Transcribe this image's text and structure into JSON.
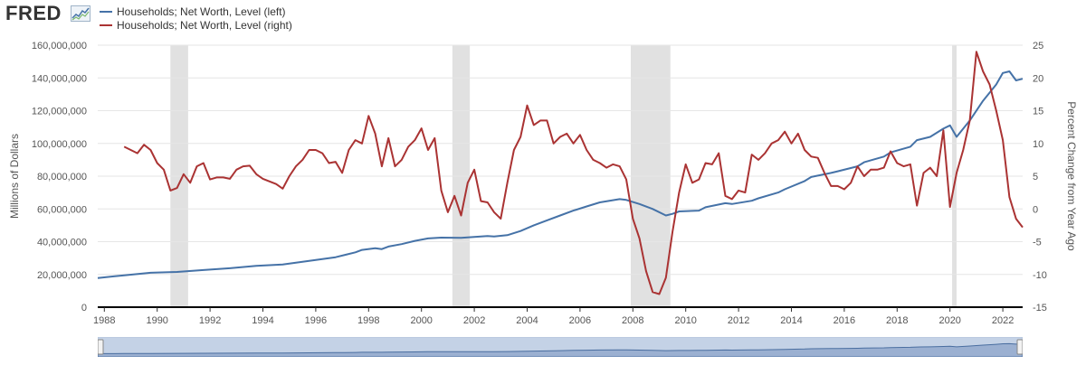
{
  "header": {
    "logo_text": "FRED",
    "legend": [
      {
        "label": "Households; Net Worth, Level (left)",
        "color": "#4572a7"
      },
      {
        "label": "Households; Net Worth, Level (right)",
        "color": "#aa3333"
      }
    ]
  },
  "chart_data": {
    "type": "line",
    "title": "",
    "xlabel": "",
    "ylabel_left": "Millions of Dollars",
    "ylabel_right": "Percent Change from Year Ago",
    "xlim": [
      1987.75,
      2022.75
    ],
    "ylim_left": [
      0,
      160000000
    ],
    "ylim_right": [
      -15,
      25
    ],
    "x_ticks": [
      "1988",
      "1990",
      "1992",
      "1994",
      "1996",
      "1998",
      "2000",
      "2002",
      "2004",
      "2006",
      "2008",
      "2010",
      "2012",
      "2014",
      "2016",
      "2018",
      "2020",
      "2022"
    ],
    "y_ticks_left": [
      "0",
      "20,000,000",
      "40,000,000",
      "60,000,000",
      "80,000,000",
      "100,000,000",
      "120,000,000",
      "140,000,000",
      "160,000,000"
    ],
    "y_ticks_right": [
      "-15",
      "-10",
      "-5",
      "0",
      "5",
      "10",
      "15",
      "20",
      "25"
    ],
    "recessions": [
      [
        1990.5,
        1991.17
      ],
      [
        2001.17,
        2001.83
      ],
      [
        2007.92,
        2009.42
      ],
      [
        2020.08,
        2020.25
      ]
    ],
    "series": [
      {
        "name": "Households; Net Worth, Level (left)",
        "axis": "left",
        "color": "#4572a7",
        "x": [
          1987.75,
          1988.75,
          1989.75,
          1990.75,
          1991.75,
          1992.75,
          1993.75,
          1994.75,
          1995.75,
          1996.75,
          1997.5,
          1997.75,
          1998.25,
          1998.5,
          1998.75,
          1999.25,
          1999.75,
          2000.25,
          2000.75,
          2001.5,
          2001.75,
          2002.5,
          2002.75,
          2003.25,
          2003.75,
          2004.25,
          2004.75,
          2005.25,
          2005.75,
          2006.25,
          2006.75,
          2007.5,
          2007.75,
          2008.25,
          2008.75,
          2009.25,
          2009.5,
          2009.75,
          2010.5,
          2010.75,
          2011.5,
          2011.75,
          2012.5,
          2012.75,
          2013.5,
          2013.75,
          2014.5,
          2014.75,
          2015.5,
          2015.75,
          2016.5,
          2016.75,
          2017.5,
          2017.75,
          2018.5,
          2018.75,
          2019.25,
          2019.75,
          2020.0,
          2020.25,
          2020.75,
          2021.25,
          2021.75,
          2022.0,
          2022.25,
          2022.5,
          2022.75
        ],
        "values": [
          17800000,
          19500000,
          21000000,
          21500000,
          22700000,
          23800000,
          25200000,
          26100000,
          28300000,
          30500000,
          33500000,
          35000000,
          36000000,
          35500000,
          37000000,
          38500000,
          40500000,
          42000000,
          42500000,
          42300000,
          42600000,
          43500000,
          43200000,
          44000000,
          46500000,
          50000000,
          53000000,
          56000000,
          59000000,
          61500000,
          64000000,
          66000000,
          65500000,
          63000000,
          60000000,
          56000000,
          57000000,
          58500000,
          59000000,
          61000000,
          63500000,
          63000000,
          65000000,
          66500000,
          70000000,
          72000000,
          77000000,
          79500000,
          82000000,
          83000000,
          86000000,
          88500000,
          92000000,
          94500000,
          98000000,
          102000000,
          104000000,
          109000000,
          111000000,
          104000000,
          114000000,
          126000000,
          136000000,
          143000000,
          144000000,
          138500000,
          139500000
        ]
      },
      {
        "name": "Households; Net Worth, Level (right)",
        "axis": "right",
        "color": "#aa3333",
        "x": [
          1988.75,
          1989.25,
          1989.5,
          1989.75,
          1990.0,
          1990.25,
          1990.5,
          1990.75,
          1991.0,
          1991.25,
          1991.5,
          1991.75,
          1992.0,
          1992.25,
          1992.5,
          1992.75,
          1993.0,
          1993.25,
          1993.5,
          1993.75,
          1994.0,
          1994.25,
          1994.5,
          1994.75,
          1995.0,
          1995.25,
          1995.5,
          1995.75,
          1996.0,
          1996.25,
          1996.5,
          1996.75,
          1997.0,
          1997.25,
          1997.5,
          1997.75,
          1998.0,
          1998.25,
          1998.5,
          1998.75,
          1999.0,
          1999.25,
          1999.5,
          1999.75,
          2000.0,
          2000.25,
          2000.5,
          2000.75,
          2001.0,
          2001.25,
          2001.5,
          2001.75,
          2002.0,
          2002.25,
          2002.5,
          2002.75,
          2003.0,
          2003.25,
          2003.5,
          2003.75,
          2004.0,
          2004.25,
          2004.5,
          2004.75,
          2005.0,
          2005.25,
          2005.5,
          2005.75,
          2006.0,
          2006.25,
          2006.5,
          2006.75,
          2007.0,
          2007.25,
          2007.5,
          2007.75,
          2008.0,
          2008.25,
          2008.5,
          2008.75,
          2009.0,
          2009.25,
          2009.5,
          2009.75,
          2010.0,
          2010.25,
          2010.5,
          2010.75,
          2011.0,
          2011.25,
          2011.5,
          2011.75,
          2012.0,
          2012.25,
          2012.5,
          2012.75,
          2013.0,
          2013.25,
          2013.5,
          2013.75,
          2014.0,
          2014.25,
          2014.5,
          2014.75,
          2015.0,
          2015.25,
          2015.5,
          2015.75,
          2016.0,
          2016.25,
          2016.5,
          2016.75,
          2017.0,
          2017.25,
          2017.5,
          2017.75,
          2018.0,
          2018.25,
          2018.5,
          2018.75,
          2019.0,
          2019.25,
          2019.5,
          2019.75,
          2020.0,
          2020.25,
          2020.5,
          2020.75,
          2021.0,
          2021.25,
          2021.5,
          2021.75,
          2022.0,
          2022.25,
          2022.5,
          2022.75
        ],
        "values": [
          9.5,
          8.5,
          9.8,
          9.0,
          7.0,
          6.0,
          2.8,
          3.2,
          5.3,
          4.0,
          6.5,
          7.0,
          4.5,
          4.8,
          4.8,
          4.6,
          6.0,
          6.5,
          6.6,
          5.3,
          4.6,
          4.2,
          3.8,
          3.1,
          5.0,
          6.5,
          7.5,
          9.0,
          9.0,
          8.5,
          7.0,
          7.2,
          5.5,
          9.0,
          10.5,
          10.0,
          14.2,
          11.5,
          6.5,
          10.8,
          6.5,
          7.5,
          9.5,
          10.5,
          12.3,
          9.0,
          10.8,
          2.8,
          -0.5,
          2.0,
          -1.0,
          4.0,
          6.0,
          1.2,
          1.0,
          -0.5,
          -1.5,
          4.0,
          9.0,
          11.0,
          15.8,
          12.8,
          13.5,
          13.5,
          10.0,
          11.0,
          11.5,
          10.0,
          11.3,
          9.0,
          7.5,
          7.0,
          6.3,
          6.8,
          6.5,
          4.5,
          -1.5,
          -4.5,
          -9.5,
          -12.7,
          -13.0,
          -10.5,
          -3.5,
          2.5,
          6.8,
          4.0,
          4.5,
          7.0,
          6.8,
          8.5,
          2.0,
          1.5,
          2.8,
          2.5,
          8.3,
          7.5,
          8.5,
          10.0,
          10.5,
          11.8,
          10.0,
          11.5,
          9.0,
          8.0,
          7.8,
          5.5,
          3.5,
          3.5,
          3.0,
          4.0,
          6.5,
          5.0,
          6.0,
          6.0,
          6.3,
          8.8,
          7.0,
          6.5,
          6.8,
          0.5,
          5.5,
          6.3,
          5.0,
          12.0,
          0.3,
          5.5,
          9.0,
          13.5,
          24.0,
          21.0,
          19.0,
          15.0,
          10.5,
          1.8,
          -1.5,
          -2.8
        ]
      }
    ]
  }
}
